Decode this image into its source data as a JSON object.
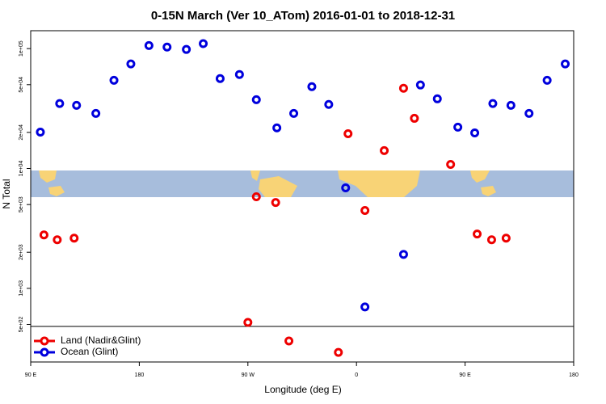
{
  "chart_data": {
    "type": "scatter",
    "title": "0-15N March (Ver 10_ATom)   2016-01-01 to 2018-12-31",
    "x_label": "Longitude (deg E)",
    "y_label": "N Total",
    "xlim": [
      90,
      540
    ],
    "xticks": [
      {
        "value": 90,
        "label": "90 E"
      },
      {
        "value": 180,
        "label": "180"
      },
      {
        "value": 270,
        "label": "90 W"
      },
      {
        "value": 360,
        "label": "0"
      },
      {
        "value": 450,
        "label": "90 E"
      },
      {
        "value": 540,
        "label": "180"
      }
    ],
    "ylim": [
      243,
      141000
    ],
    "y_log": true,
    "yticks": [
      {
        "value": 500,
        "label": "5e+02"
      },
      {
        "value": 1000,
        "label": "1e+03"
      },
      {
        "value": 2000,
        "label": "2e+03"
      },
      {
        "value": 5000,
        "label": "5e+03"
      },
      {
        "value": 10000,
        "label": "1e+04"
      },
      {
        "value": 20000,
        "label": "2e+04"
      },
      {
        "value": 50000,
        "label": "5e+04"
      },
      {
        "value": 100000,
        "label": "1e+05"
      }
    ],
    "legend": "bottom-left",
    "series": [
      {
        "name": "Land (Nadir&Glint)",
        "color": "#ee0000",
        "x": [
          101,
          112,
          126,
          270,
          277,
          293,
          304,
          345,
          353,
          367,
          383,
          399,
          408,
          438,
          460,
          472,
          484
        ],
        "values": [
          2790,
          2540,
          2620,
          520,
          5810,
          5200,
          364,
          292,
          19500,
          4460,
          14100,
          46700,
          26200,
          10800,
          2840,
          2540,
          2620
        ]
      },
      {
        "name": "Ocean (Glint)",
        "color": "#0000dd",
        "x": [
          98,
          114,
          128,
          144,
          159,
          173,
          188,
          203,
          219,
          233,
          247,
          263,
          277,
          294,
          308,
          323,
          337,
          351,
          367,
          399,
          413,
          427,
          444,
          458,
          473,
          488,
          503,
          518,
          533
        ],
        "values": [
          20100,
          34800,
          33600,
          28800,
          54400,
          74500,
          106000,
          103000,
          98400,
          110000,
          56200,
          60800,
          37500,
          21800,
          28800,
          48100,
          34200,
          6890,
          700,
          1920,
          49700,
          38100,
          22100,
          19800,
          34800,
          33600,
          28800,
          54400,
          74500
        ]
      }
    ]
  }
}
